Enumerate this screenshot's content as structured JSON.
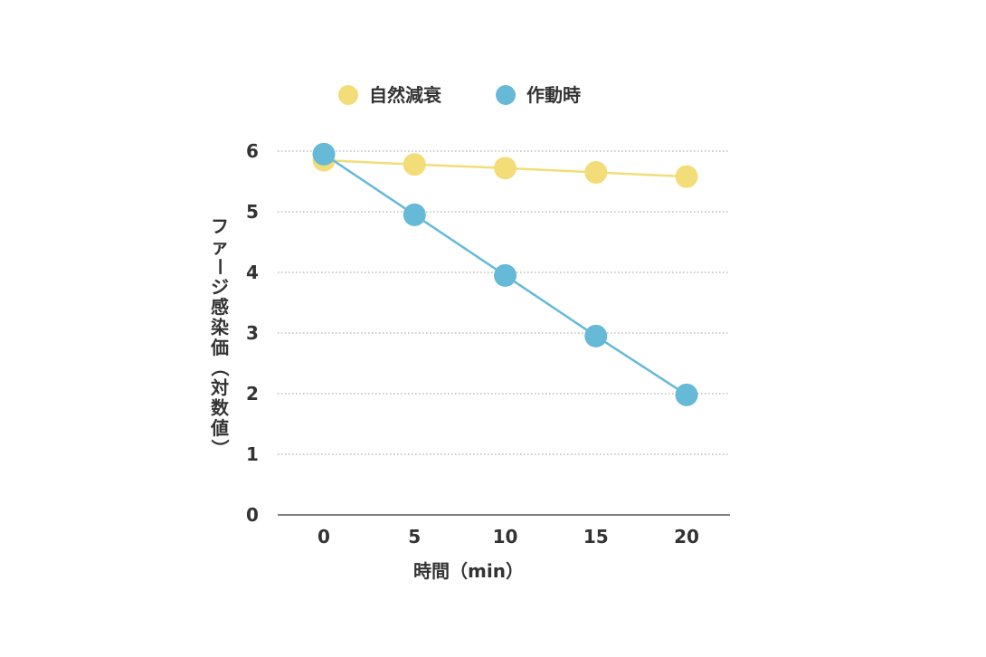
{
  "chart_data": {
    "type": "line",
    "x": [
      0,
      5,
      10,
      15,
      20
    ],
    "x_tick_labels": [
      "0",
      "5",
      "10",
      "15",
      "20"
    ],
    "y_tick_labels": [
      "0",
      "1",
      "2",
      "3",
      "4",
      "5",
      "6"
    ],
    "xlabel": "時間（min）",
    "ylabel": "ファージ感染価（対数値）",
    "ylim": [
      0,
      6
    ],
    "grid": "horizontal-dotted",
    "legend_position": "top",
    "series": [
      {
        "name": "自然減衰",
        "color": "#f3dd78",
        "values": [
          5.85,
          5.78,
          5.72,
          5.65,
          5.58
        ]
      },
      {
        "name": "作動時",
        "color": "#66b9d7",
        "values": [
          5.95,
          4.95,
          3.95,
          2.95,
          1.98
        ]
      }
    ]
  }
}
